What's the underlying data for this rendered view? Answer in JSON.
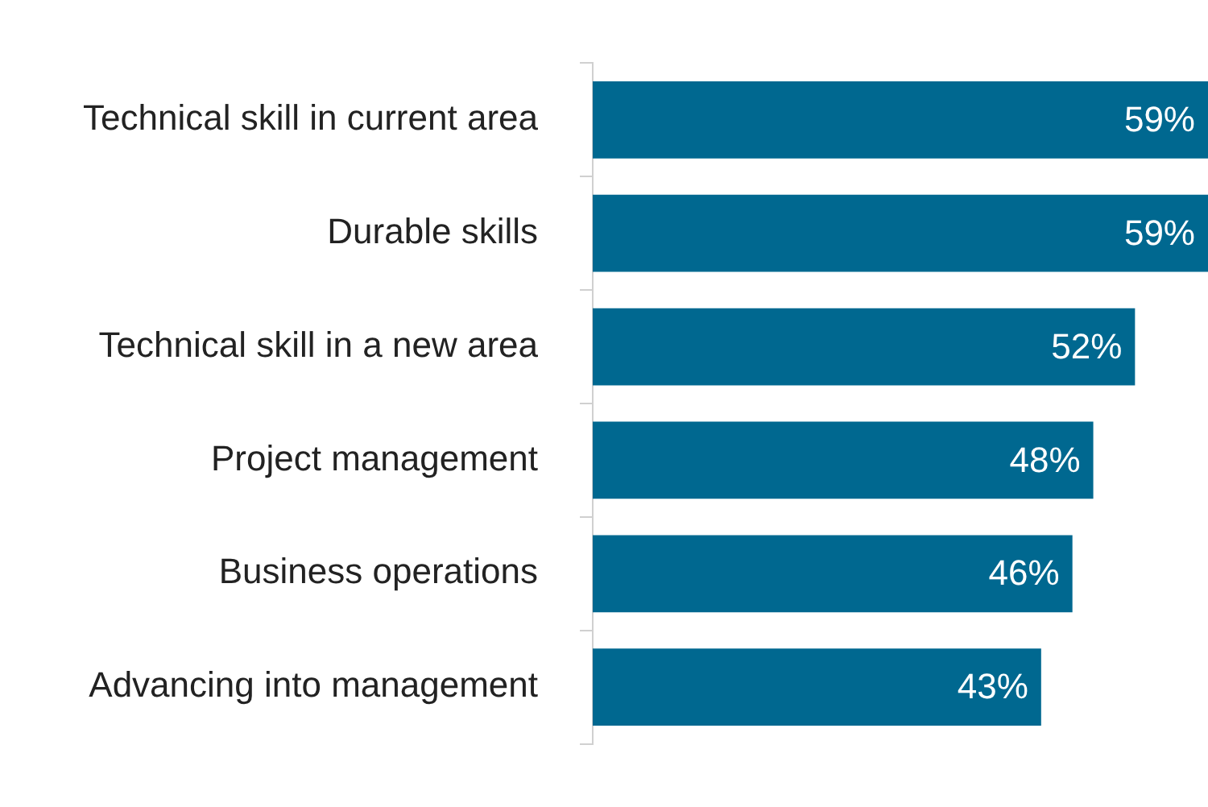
{
  "chart_data": {
    "type": "bar",
    "orientation": "horizontal",
    "categories": [
      "Technical skill in current area",
      "Durable skills",
      "Technical skill in a new area",
      "Project management",
      "Business operations",
      "Advancing into management"
    ],
    "values": [
      59,
      59,
      52,
      48,
      46,
      43
    ],
    "color": "#006890",
    "data_labels": true,
    "value_labels": [
      "59%",
      "59%",
      "52%",
      "48%",
      "46%",
      "43%"
    ],
    "tick_labels": "y",
    "grid": false,
    "legend": false
  }
}
